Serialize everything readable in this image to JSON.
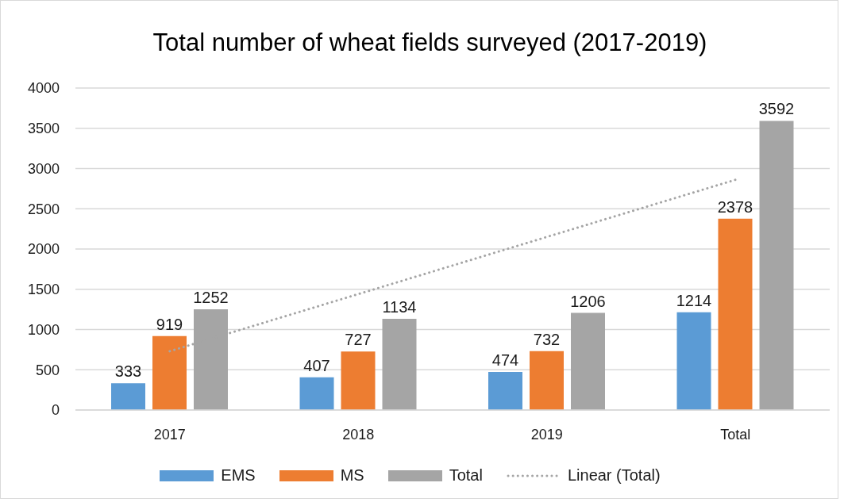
{
  "chart_data": {
    "type": "bar",
    "title": "Total number of wheat fields surveyed (2017-2019)",
    "categories": [
      "2017",
      "2018",
      "2019",
      "Total"
    ],
    "series": [
      {
        "name": "EMS",
        "color": "#5b9bd5",
        "values": [
          333,
          407,
          474,
          1214
        ],
        "data_labels": true
      },
      {
        "name": "MS",
        "color": "#ed7d31",
        "values": [
          919,
          727,
          732,
          2378
        ],
        "data_labels": true
      },
      {
        "name": "Total",
        "color": "#a5a5a5",
        "values": [
          1252,
          1134,
          1206,
          3592
        ],
        "data_labels": true
      },
      {
        "name": "Linear (Total)",
        "type": "line",
        "color": "#a5a5a5",
        "values": [
          730,
          1440,
          2150,
          2860
        ],
        "line_style": "dotted",
        "marker": "none"
      }
    ],
    "ylim": [
      0,
      4000
    ],
    "yticks": [
      0,
      500,
      1000,
      1500,
      2000,
      2500,
      3000,
      3500,
      4000
    ],
    "grid": "y",
    "legend": "bottom"
  }
}
